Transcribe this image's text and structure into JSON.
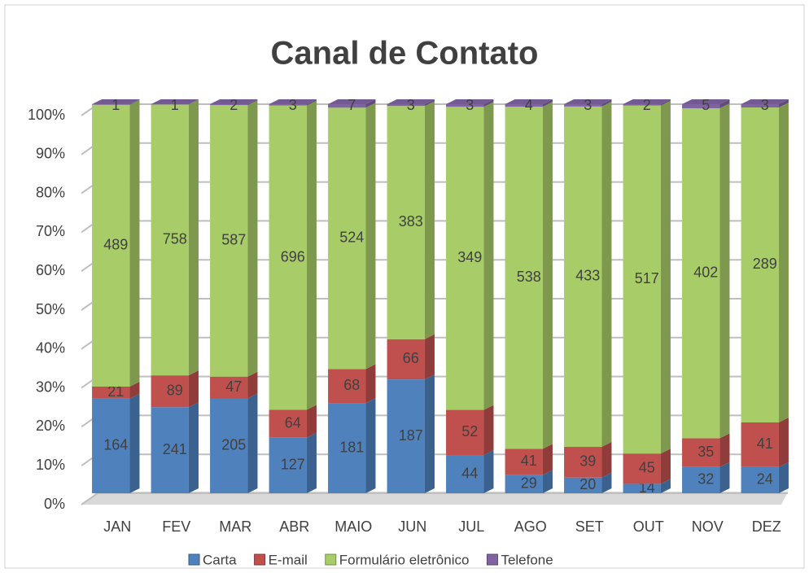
{
  "chart_data": {
    "type": "bar",
    "stacking": "percent",
    "title": "Canal de Contato",
    "categories": [
      "JAN",
      "FEV",
      "MAR",
      "ABR",
      "MAIO",
      "JUN",
      "JUL",
      "AGO",
      "SET",
      "OUT",
      "NOV",
      "DEZ"
    ],
    "series": [
      {
        "name": "Carta",
        "color": "#4f81bd",
        "values": [
          164,
          241,
          205,
          127,
          181,
          187,
          44,
          29,
          20,
          14,
          32,
          24
        ]
      },
      {
        "name": "E-mail",
        "color": "#c0504d",
        "values": [
          21,
          89,
          47,
          64,
          68,
          66,
          52,
          41,
          39,
          45,
          35,
          41
        ]
      },
      {
        "name": "Formulário eletrônico",
        "color": "#a8cc68",
        "values": [
          489,
          758,
          587,
          696,
          524,
          383,
          349,
          538,
          433,
          517,
          402,
          289
        ]
      },
      {
        "name": "Telefone",
        "color": "#8064a2",
        "values": [
          1,
          1,
          2,
          3,
          7,
          3,
          3,
          4,
          3,
          2,
          5,
          3
        ]
      }
    ],
    "ylim": [
      0,
      100
    ],
    "yticks": [
      {
        "value": 0,
        "label": "0%"
      },
      {
        "value": 10,
        "label": "10%"
      },
      {
        "value": 20,
        "label": "20%"
      },
      {
        "value": 30,
        "label": "30%"
      },
      {
        "value": 40,
        "label": "40%"
      },
      {
        "value": 50,
        "label": "50%"
      },
      {
        "value": 60,
        "label": "60%"
      },
      {
        "value": 70,
        "label": "70%"
      },
      {
        "value": 80,
        "label": "80%"
      },
      {
        "value": 90,
        "label": "90%"
      },
      {
        "value": 100,
        "label": "100%"
      }
    ],
    "grid": true,
    "legend": "bottom"
  }
}
